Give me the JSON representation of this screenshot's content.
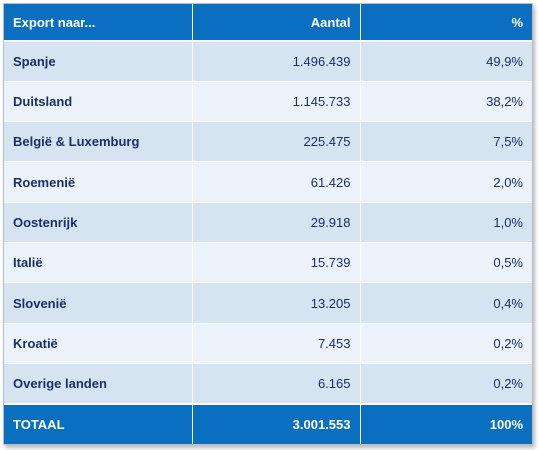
{
  "table": {
    "headers": {
      "country": "Export naar...",
      "count": "Aantal",
      "percent": "%"
    },
    "rows": [
      {
        "country": "Spanje",
        "count": "1.496.439",
        "percent": "49,9%"
      },
      {
        "country": "Duitsland",
        "count": "1.145.733",
        "percent": "38,2%"
      },
      {
        "country": "België & Luxemburg",
        "count": "225.475",
        "percent": "7,5%"
      },
      {
        "country": "Roemenië",
        "count": "61.426",
        "percent": "2,0%"
      },
      {
        "country": "Oostenrijk",
        "count": "29.918",
        "percent": "1,0%"
      },
      {
        "country": "Italië",
        "count": "15.739",
        "percent": "0,5%"
      },
      {
        "country": "Slovenië",
        "count": "13.205",
        "percent": "0,4%"
      },
      {
        "country": "Kroatië",
        "count": "7.453",
        "percent": "0,2%"
      },
      {
        "country": "Overige landen",
        "count": "6.165",
        "percent": "0,2%"
      }
    ],
    "total": {
      "country": "TOTAAL",
      "count": "3.001.553",
      "percent": "100%"
    }
  },
  "colors": {
    "header_bg": "#0b6fc1",
    "row_odd_bg": "#d6e3f1",
    "row_even_bg": "#ecf2f9",
    "body_text": "#1b2f68"
  }
}
